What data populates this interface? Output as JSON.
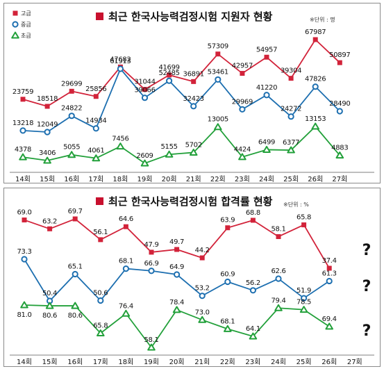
{
  "chart_data": [
    {
      "type": "line",
      "title": "최근 한국사능력검정시험 지원자 현황",
      "unit": "※단위 : 명",
      "categories": [
        "14회",
        "15회",
        "16회",
        "17회",
        "18회",
        "19회",
        "20회",
        "21회",
        "22회",
        "23회",
        "24회",
        "25회",
        "26회",
        "27회"
      ],
      "series": [
        {
          "name": "고급",
          "color": "#d2233a",
          "marker": "square",
          "values": [
            23759,
            18518,
            29699,
            25856,
            47682,
            31044,
            41699,
            36891,
            57309,
            42957,
            54957,
            39304,
            67987,
            50897
          ]
        },
        {
          "name": "중급",
          "color": "#1d6fb0",
          "marker": "circle",
          "values": [
            13218,
            12049,
            24822,
            14934,
            61913,
            39066,
            52485,
            32423,
            53461,
            29969,
            41220,
            24272,
            47826,
            28490
          ]
        },
        {
          "name": "초급",
          "color": "#22a03a",
          "marker": "triangle",
          "values": [
            4378,
            3406,
            5055,
            4061,
            7456,
            2609,
            5155,
            5702,
            13005,
            4424,
            6499,
            6377,
            13153,
            4883
          ]
        }
      ],
      "legend_position": "top-left"
    },
    {
      "type": "line",
      "title": "최근 한국사능력검정시험 합격률 현황",
      "unit": "※단위 : %",
      "categories": [
        "14회",
        "15회",
        "16회",
        "17회",
        "18회",
        "19회",
        "20회",
        "21회",
        "22회",
        "23회",
        "24회",
        "25회",
        "26회",
        "27회"
      ],
      "series": [
        {
          "color": "#d2233a",
          "marker": "square",
          "values": [
            69.0,
            63.2,
            69.7,
            56.1,
            64.6,
            47.9,
            49.7,
            44.2,
            63.9,
            68.8,
            58.1,
            65.8,
            37.4,
            null
          ]
        },
        {
          "color": "#1d6fb0",
          "marker": "circle",
          "values": [
            73.3,
            50.4,
            65.1,
            50.6,
            68.1,
            66.9,
            64.9,
            53.2,
            60.9,
            56.2,
            62.6,
            51.9,
            61.3,
            null
          ]
        },
        {
          "color": "#22a03a",
          "marker": "triangle",
          "values": [
            81.0,
            80.6,
            80.6,
            65.8,
            76.4,
            58.1,
            78.4,
            73.0,
            68.1,
            64.1,
            79.4,
            78.5,
            69.4,
            null
          ]
        }
      ],
      "missing_marker": "?"
    }
  ]
}
